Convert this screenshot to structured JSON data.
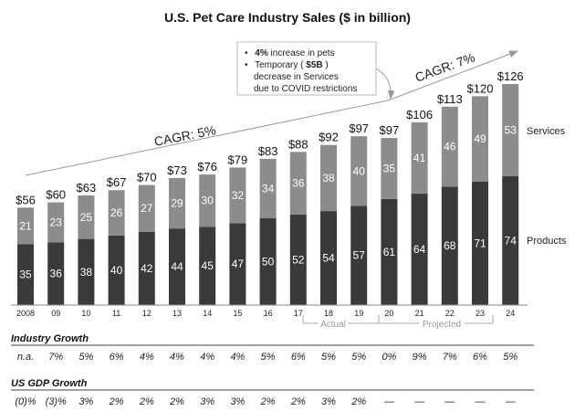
{
  "chart_data": {
    "type": "bar",
    "stacked": true,
    "title": "U.S. Pet Care Industry Sales ($ in billion)",
    "categories": [
      "2008",
      "09",
      "10",
      "11",
      "12",
      "13",
      "14",
      "15",
      "16",
      "17",
      "18",
      "19",
      "20",
      "21",
      "22",
      "23",
      "24"
    ],
    "totals": [
      "$56",
      "$60",
      "$63",
      "$67",
      "$70",
      "$73",
      "$76",
      "$79",
      "$83",
      "$88",
      "$92",
      "$97",
      "$97",
      "$106",
      "$113",
      "$120",
      "$126"
    ],
    "series": [
      {
        "name": "Products",
        "color": "#3a3a3a",
        "values": [
          35,
          36,
          38,
          40,
          42,
          44,
          45,
          47,
          50,
          52,
          54,
          57,
          61,
          64,
          68,
          71,
          74
        ]
      },
      {
        "name": "Services",
        "color": "#8c8c8c",
        "values": [
          21,
          23,
          25,
          26,
          27,
          29,
          30,
          32,
          34,
          36,
          38,
          40,
          35,
          41,
          46,
          49,
          53
        ]
      }
    ],
    "annotations": {
      "cagr_left": "CAGR: 5%",
      "cagr_right": "CAGR: 7%",
      "actual_label": "Actual",
      "projected_label": "Projected",
      "note_lines": [
        {
          "bullet": "•",
          "bold": "4%",
          "text": " increase in pets"
        },
        {
          "bullet": "•",
          "prefix": "Temporary (",
          "bold": "$5B",
          "suffix": ")"
        },
        {
          "bullet": "",
          "text": "decrease in Services"
        },
        {
          "bullet": "",
          "text": "due to COVID restrictions"
        }
      ]
    },
    "industry_growth": {
      "label": "Industry Growth",
      "values": [
        "n.a.",
        "7%",
        "5%",
        "6%",
        "4%",
        "4%",
        "4%",
        "4%",
        "5%",
        "6%",
        "5%",
        "5%",
        "0%",
        "9%",
        "7%",
        "6%",
        "5%"
      ]
    },
    "gdp_growth": {
      "label": "US GDP Growth",
      "values": [
        "(0)%",
        "(3)%",
        "3%",
        "2%",
        "2%",
        "2%",
        "3%",
        "3%",
        "2%",
        "2%",
        "3%",
        "2%",
        "—",
        "—",
        "—",
        "—",
        "—"
      ]
    }
  }
}
